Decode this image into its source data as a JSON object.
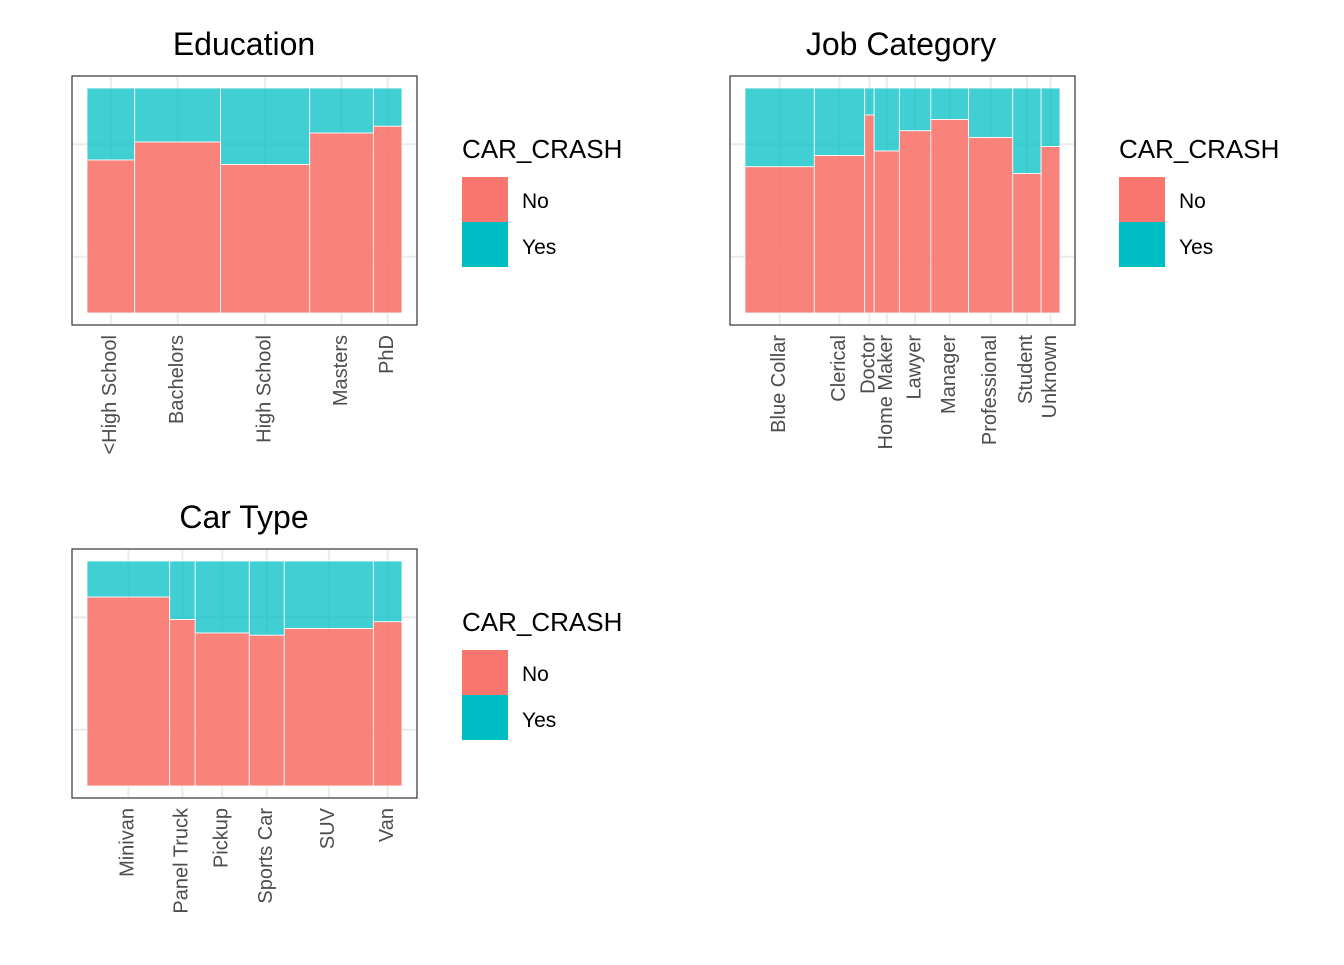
{
  "colors": {
    "no": "#F8766D",
    "yes": "#00BFC4",
    "panel_border": "#333333",
    "grid": "#EBEBEB",
    "tick_text": "#4D4D4D"
  },
  "chart_data": [
    {
      "type": "mosaic",
      "title": "Education",
      "legend_title": "CAR_CRASH",
      "legend_position": "right",
      "series": [
        {
          "name": "No"
        },
        {
          "name": "Yes"
        }
      ],
      "categories": [
        "<High School",
        "Bachelors",
        "High School",
        "Masters",
        "PhD"
      ],
      "weights": [
        0.15,
        0.27,
        0.28,
        0.2,
        0.09
      ],
      "no_share": [
        0.68,
        0.76,
        0.66,
        0.8,
        0.83
      ],
      "grid": true
    },
    {
      "type": "mosaic",
      "title": "Job Category",
      "legend_title": "CAR_CRASH",
      "legend_position": "right",
      "series": [
        {
          "name": "No"
        },
        {
          "name": "Yes"
        }
      ],
      "categories": [
        {
          "lines": [
            "Blue Collar"
          ]
        },
        {
          "lines": [
            "Clerical"
          ]
        },
        {
          "lines": [
            "Doctor"
          ]
        },
        {
          "lines": [
            "Home Maker"
          ]
        },
        {
          "lines": [
            "Lawyer"
          ]
        },
        {
          "lines": [
            "Manager"
          ]
        },
        {
          "lines": [
            "Professional"
          ]
        },
        {
          "lines": [
            "Student"
          ]
        },
        {
          "lines": [
            "Unknown"
          ]
        }
      ],
      "weights": [
        0.22,
        0.16,
        0.03,
        0.08,
        0.1,
        0.12,
        0.14,
        0.09,
        0.06
      ],
      "no_share": [
        0.65,
        0.7,
        0.88,
        0.72,
        0.81,
        0.86,
        0.78,
        0.62,
        0.74
      ],
      "grid": true
    },
    {
      "type": "mosaic",
      "title": "Car Type",
      "legend_title": "CAR_CRASH",
      "legend_position": "right",
      "series": [
        {
          "name": "No"
        },
        {
          "name": "Yes"
        }
      ],
      "categories": [
        "Minivan",
        "Panel Truck",
        "Pickup",
        "Sports Car",
        "SUV",
        "Van"
      ],
      "weights": [
        0.26,
        0.08,
        0.17,
        0.11,
        0.28,
        0.09
      ],
      "no_share": [
        0.84,
        0.74,
        0.68,
        0.67,
        0.7,
        0.73
      ],
      "grid": true
    }
  ]
}
